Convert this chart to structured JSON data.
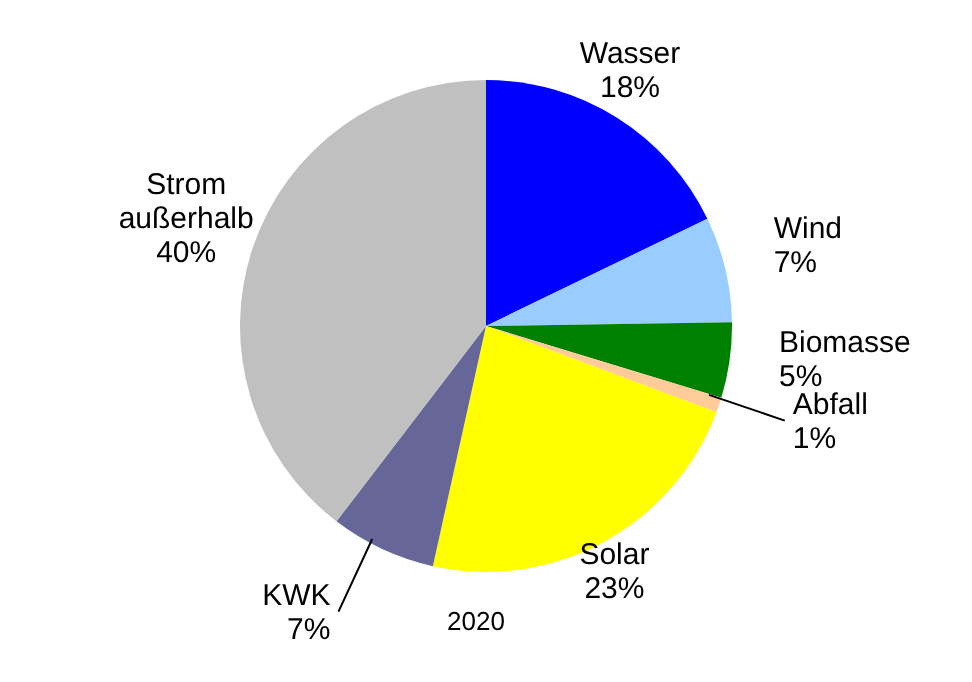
{
  "chart_data": {
    "type": "pie",
    "title": "2020",
    "categories": [
      "Wasser",
      "Wind",
      "Biomasse",
      "Abfall",
      "Solar",
      "KWK",
      "Strom außerhalb"
    ],
    "values": [
      18,
      7,
      5,
      1,
      23,
      7,
      40
    ],
    "value_labels": [
      "18%",
      "7%",
      "5%",
      "1%",
      "23%",
      "7%",
      "40%"
    ],
    "colors": [
      "#0000ff",
      "#99ccff",
      "#008000",
      "#ffcc99",
      "#ffff00",
      "#666699",
      "#c0c0c0"
    ],
    "legend": false
  }
}
